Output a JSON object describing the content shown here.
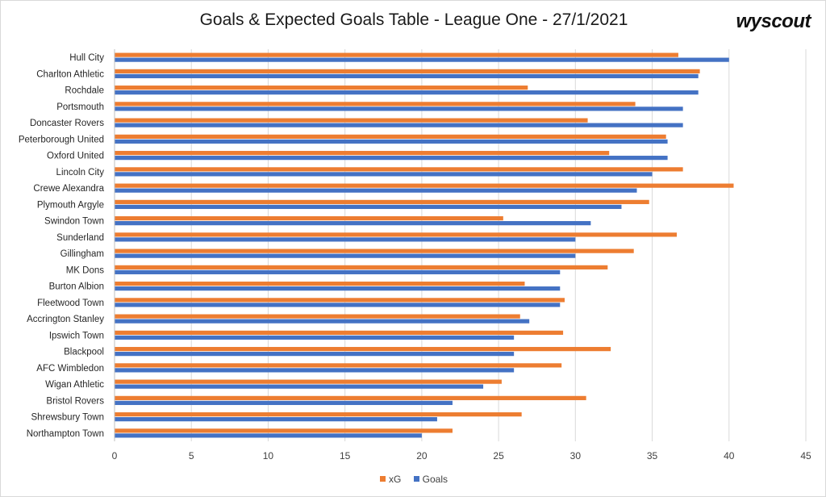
{
  "title": "Goals & Expected Goals Table - League One - 27/1/2021",
  "brand": "wyscout",
  "colors": {
    "xG": "#ed7d31",
    "Goals": "#4472c4",
    "grid": "#d9d9d9",
    "text": "#404040"
  },
  "chart_data": {
    "type": "bar",
    "orientation": "horizontal",
    "categories": [
      "Hull City",
      "Charlton Athletic",
      "Rochdale",
      "Portsmouth",
      "Doncaster Rovers",
      "Peterborough United",
      "Oxford United",
      "Lincoln City",
      "Crewe Alexandra",
      "Plymouth Argyle",
      "Swindon Town",
      "Sunderland",
      "Gillingham",
      "MK Dons",
      "Burton Albion",
      "Fleetwood Town",
      "Accrington Stanley",
      "Ipswich Town",
      "Blackpool",
      "AFC Wimbledon",
      "Wigan Athletic",
      "Bristol Rovers",
      "Shrewsbury Town",
      "Northampton Town"
    ],
    "series": [
      {
        "name": "xG",
        "color": "#ed7d31",
        "values": [
          36.7,
          38.1,
          26.9,
          33.9,
          30.8,
          35.9,
          32.2,
          37.0,
          40.3,
          34.8,
          25.3,
          36.6,
          33.8,
          32.1,
          26.7,
          29.3,
          26.4,
          29.2,
          32.3,
          29.1,
          25.2,
          30.7,
          26.5,
          22.0
        ]
      },
      {
        "name": "Goals",
        "color": "#4472c4",
        "values": [
          40,
          38,
          38,
          37,
          37,
          36,
          36,
          35,
          34,
          33,
          31,
          30,
          30,
          29,
          29,
          29,
          27,
          26,
          26,
          26,
          24,
          22,
          21,
          20
        ]
      }
    ],
    "xlim": [
      0,
      45
    ],
    "xticks": [
      0,
      5,
      10,
      15,
      20,
      25,
      30,
      35,
      40,
      45
    ],
    "grid": true,
    "legend_position": "bottom"
  }
}
